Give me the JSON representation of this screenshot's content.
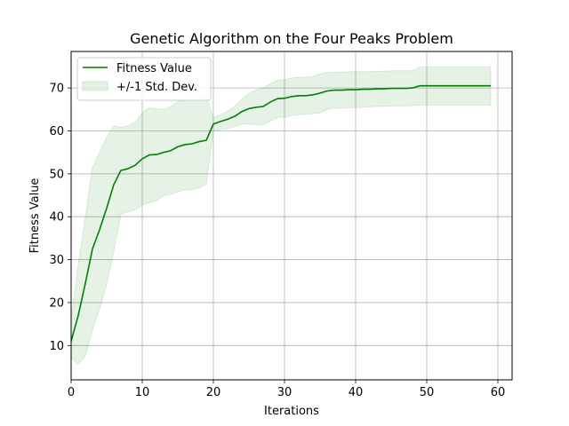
{
  "chart_data": {
    "type": "line",
    "title": "Genetic Algorithm on the Four Peaks Problem",
    "xlabel": "Iterations",
    "ylabel": "Fitness Value",
    "xlim": [
      0,
      62
    ],
    "ylim": [
      2,
      78.5
    ],
    "xticks": [
      0,
      10,
      20,
      30,
      40,
      50,
      60
    ],
    "yticks": [
      10,
      20,
      30,
      40,
      50,
      60,
      70
    ],
    "grid": true,
    "legend_position": "top-left",
    "colors": {
      "line": "#008000",
      "band": "#008000"
    },
    "series": [
      {
        "name": "Fitness Value",
        "x": [
          0,
          1,
          2,
          3,
          4,
          5,
          6,
          7,
          8,
          9,
          10,
          11,
          12,
          13,
          14,
          15,
          16,
          17,
          18,
          19,
          20,
          21,
          22,
          23,
          24,
          25,
          26,
          27,
          28,
          29,
          30,
          31,
          32,
          33,
          34,
          35,
          36,
          37,
          38,
          39,
          40,
          41,
          42,
          43,
          44,
          45,
          46,
          47,
          48,
          49,
          50,
          51,
          52,
          53,
          54,
          55,
          56,
          57,
          58,
          59
        ],
        "y": [
          11,
          17,
          24.5,
          32.5,
          37,
          42,
          47.5,
          50.8,
          51.2,
          52,
          53.5,
          54.4,
          54.5,
          55,
          55.4,
          56.3,
          56.8,
          57,
          57.5,
          57.8,
          61.6,
          62.2,
          62.7,
          63.4,
          64.5,
          65.2,
          65.5,
          65.7,
          66.7,
          67.5,
          67.6,
          68,
          68.2,
          68.2,
          68.4,
          68.8,
          69.3,
          69.5,
          69.5,
          69.6,
          69.6,
          69.7,
          69.7,
          69.8,
          69.8,
          69.9,
          69.9,
          69.9,
          70,
          70.5,
          70.5,
          70.5,
          70.5,
          70.5,
          70.5,
          70.5,
          70.5,
          70.5,
          70.5,
          70.5
        ]
      },
      {
        "name": "+/-1 Std. Dev.",
        "x": [
          0,
          1,
          2,
          3,
          4,
          5,
          6,
          7,
          8,
          9,
          10,
          11,
          12,
          13,
          14,
          15,
          16,
          17,
          18,
          19,
          20,
          21,
          22,
          23,
          24,
          25,
          26,
          27,
          28,
          29,
          30,
          31,
          32,
          33,
          34,
          35,
          36,
          37,
          38,
          39,
          40,
          41,
          42,
          43,
          44,
          45,
          46,
          47,
          48,
          49,
          50,
          51,
          52,
          53,
          54,
          55,
          56,
          57,
          58,
          59
        ],
        "upper": [
          16,
          29,
          40,
          51.5,
          55,
          58.5,
          61.2,
          60.9,
          61.2,
          62,
          64.2,
          65.4,
          65.2,
          65,
          65.6,
          66.8,
          67.2,
          67.5,
          67.2,
          68,
          63.1,
          63.8,
          64.6,
          65.7,
          67.4,
          68.8,
          69.5,
          70,
          71,
          71.8,
          72,
          72.3,
          72.5,
          72.5,
          72.7,
          73.3,
          73.6,
          73.7,
          73.7,
          73.8,
          73.8,
          73.8,
          73.8,
          73.9,
          73.9,
          74,
          74,
          74,
          74,
          74.9,
          74.9,
          74.9,
          74.9,
          74.9,
          74.9,
          74.9,
          74.9,
          74.9,
          74.9,
          74.9
        ],
        "lower": [
          7,
          5.7,
          7.5,
          13.5,
          18.5,
          24.2,
          32,
          40.6,
          41.1,
          41.6,
          42.7,
          43.3,
          43.7,
          44.9,
          45.2,
          45.8,
          46.3,
          46.3,
          46.7,
          47.5,
          60,
          60.3,
          60.5,
          61,
          61.6,
          61.6,
          61.5,
          61.4,
          62.3,
          63.1,
          63.2,
          63.6,
          63.8,
          63.9,
          64,
          64.2,
          65,
          65.3,
          65.3,
          65.4,
          65.4,
          65.5,
          65.6,
          65.7,
          65.7,
          65.8,
          65.8,
          65.8,
          65.9,
          66,
          66,
          66,
          66,
          66,
          66,
          66,
          66,
          66,
          66,
          66
        ]
      }
    ]
  }
}
